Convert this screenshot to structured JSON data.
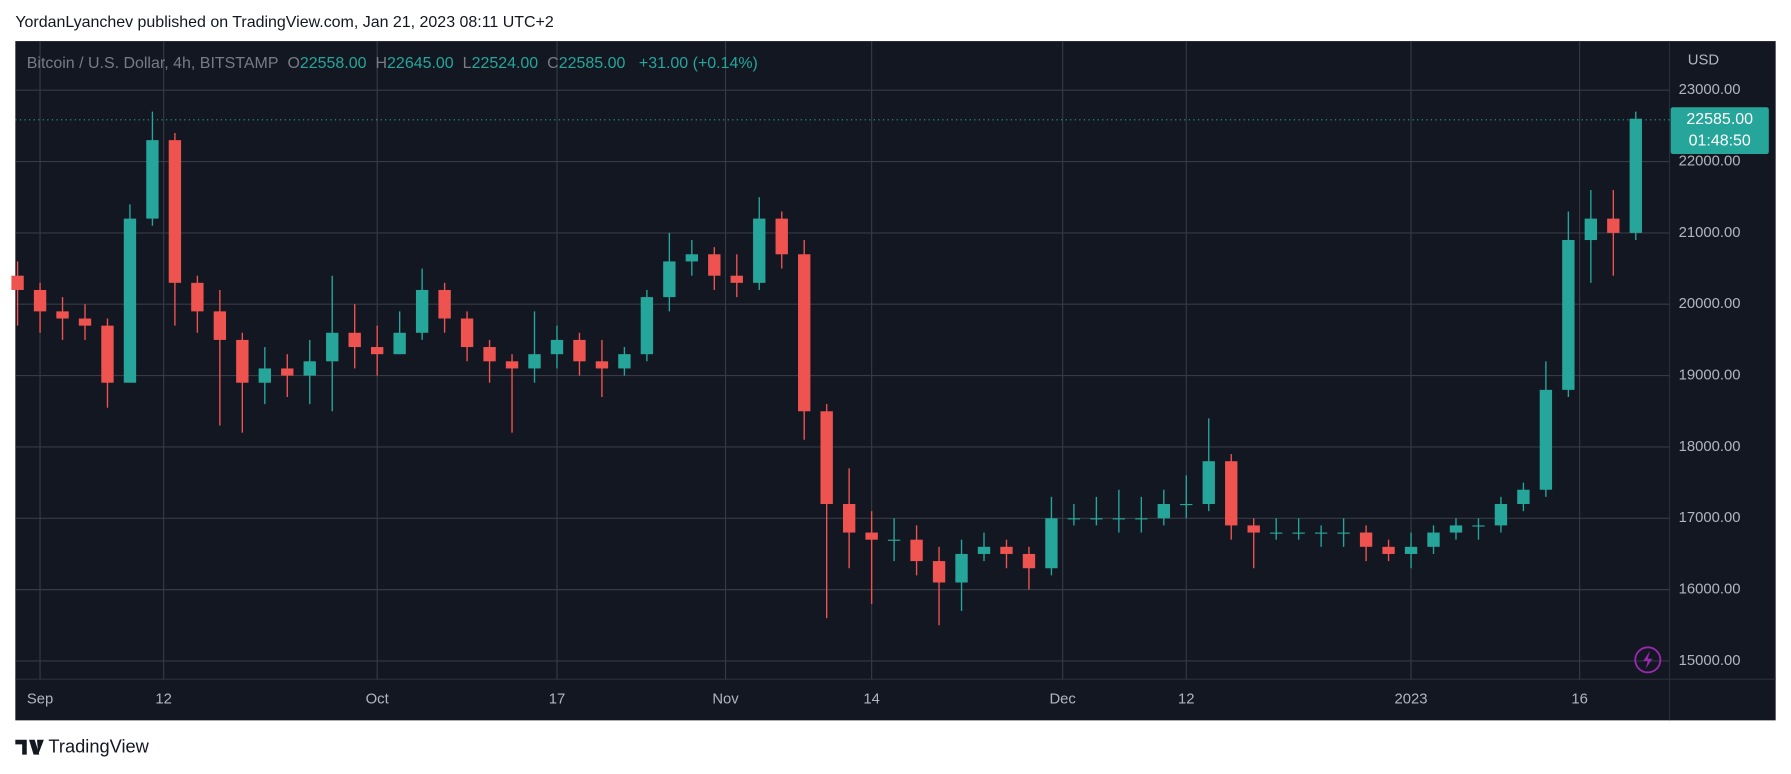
{
  "header": {
    "text": "YordanLyanchev published on TradingView.com, Jan 21, 2023 08:11 UTC+2"
  },
  "chart_data": {
    "type": "candlestick",
    "ohlc_legend": {
      "symbol": "Bitcoin / U.S. Dollar, 4h, BITSTAMP",
      "open_label": "O",
      "open": "22558.00",
      "high_label": "H",
      "high": "22645.00",
      "low_label": "L",
      "low": "22524.00",
      "close_label": "C",
      "close": "22585.00",
      "change": "+31.00 (+0.14%)"
    },
    "currency": "USD",
    "last_price": {
      "value": 22585,
      "label": "22585.00"
    },
    "countdown": "01:48:50",
    "up_color": "#26a69a",
    "down_color": "#ef5350",
    "grid": true,
    "xlim": [
      -0.2,
      147
    ],
    "xticks": [
      {
        "value": 2,
        "label": "Sep"
      },
      {
        "value": 13,
        "label": "12"
      },
      {
        "value": 32,
        "label": "Oct"
      },
      {
        "value": 48,
        "label": "17"
      },
      {
        "value": 63,
        "label": "Nov"
      },
      {
        "value": 76,
        "label": "14"
      },
      {
        "value": 93,
        "label": "Dec"
      },
      {
        "value": 104,
        "label": "12"
      },
      {
        "value": 124,
        "label": "2023"
      },
      {
        "value": 139,
        "label": "16"
      }
    ],
    "ylim": [
      14744,
      23688
    ],
    "yticks": [
      {
        "value": 15000,
        "label": "15000.00"
      },
      {
        "value": 16000,
        "label": "16000.00"
      },
      {
        "value": 17000,
        "label": "17000.00"
      },
      {
        "value": 18000,
        "label": "18000.00"
      },
      {
        "value": 19000,
        "label": "19000.00"
      },
      {
        "value": 20000,
        "label": "20000.00"
      },
      {
        "value": 21000,
        "label": "21000.00"
      },
      {
        "value": 22000,
        "label": "22000.00"
      },
      {
        "value": 23000,
        "label": "23000.00"
      }
    ],
    "x": [
      0,
      2,
      4,
      6,
      8,
      10,
      12,
      14,
      16,
      18,
      20,
      22,
      24,
      26,
      28,
      30,
      32,
      34,
      36,
      38,
      40,
      42,
      44,
      46,
      48,
      50,
      52,
      54,
      56,
      58,
      60,
      62,
      64,
      66,
      68,
      70,
      72,
      74,
      76,
      78,
      80,
      82,
      84,
      86,
      88,
      90,
      92,
      94,
      96,
      98,
      100,
      102,
      104,
      106,
      108,
      110,
      112,
      114,
      116,
      118,
      120,
      122,
      124,
      126,
      128,
      130,
      132,
      134,
      136,
      138,
      140,
      142,
      144
    ],
    "open": [
      20400,
      20200,
      19900,
      19800,
      19700,
      18900,
      21200,
      22300,
      20300,
      19900,
      19500,
      18900,
      19100,
      19000,
      19200,
      19600,
      19400,
      19300,
      19600,
      20200,
      19800,
      19400,
      19200,
      19100,
      19300,
      19500,
      19200,
      19100,
      19300,
      20100,
      20600,
      20700,
      20400,
      20300,
      21200,
      20700,
      18500,
      17200,
      16800,
      16700,
      16700,
      16400,
      16100,
      16500,
      16600,
      16500,
      16300,
      17000,
      17000,
      17000,
      17000,
      17000,
      17200,
      17200,
      17800,
      16900,
      16800,
      16800,
      16800,
      16800,
      16800,
      16600,
      16500,
      16600,
      16800,
      16900,
      16900,
      17200,
      17400,
      18800,
      20900,
      21200,
      21000
    ],
    "high": [
      20600,
      20300,
      20100,
      20000,
      19800,
      21400,
      22700,
      22400,
      20400,
      20200,
      19600,
      19400,
      19300,
      19500,
      20400,
      20000,
      19700,
      19900,
      20500,
      20300,
      19900,
      19500,
      19300,
      19900,
      19700,
      19600,
      19500,
      19400,
      20200,
      21000,
      20900,
      20800,
      20700,
      21500,
      21300,
      20900,
      18600,
      17700,
      17100,
      17000,
      16900,
      16600,
      16700,
      16800,
      16700,
      16600,
      17300,
      17200,
      17300,
      17400,
      17300,
      17400,
      17600,
      18400,
      17900,
      17000,
      17000,
      17000,
      16900,
      17000,
      16900,
      16700,
      16800,
      16900,
      17000,
      17000,
      17300,
      17500,
      19200,
      21300,
      21600,
      21600,
      22700
    ],
    "low": [
      19700,
      19600,
      19500,
      19500,
      18550,
      18900,
      21100,
      19700,
      19600,
      18300,
      18200,
      18600,
      18700,
      18600,
      18500,
      19100,
      19000,
      19300,
      19500,
      19600,
      19200,
      18900,
      18200,
      18900,
      19100,
      19000,
      18700,
      19000,
      19200,
      19900,
      20400,
      20200,
      20100,
      20200,
      20500,
      18100,
      15600,
      16300,
      15800,
      16400,
      16200,
      15500,
      15700,
      16400,
      16300,
      16000,
      16200,
      16900,
      16900,
      16800,
      16800,
      16900,
      17000,
      17100,
      16700,
      16300,
      16700,
      16700,
      16600,
      16600,
      16400,
      16400,
      16300,
      16500,
      16700,
      16700,
      16800,
      17100,
      17300,
      18700,
      20300,
      20400,
      20900
    ],
    "close": [
      20200,
      19900,
      19800,
      19700,
      18900,
      21200,
      22300,
      20300,
      19900,
      19500,
      18900,
      19100,
      19000,
      19200,
      19600,
      19400,
      19300,
      19600,
      20200,
      19800,
      19400,
      19200,
      19100,
      19300,
      19500,
      19200,
      19100,
      19300,
      20100,
      20600,
      20700,
      20400,
      20300,
      21200,
      20700,
      18500,
      17200,
      16800,
      16700,
      16700,
      16400,
      16100,
      16500,
      16600,
      16500,
      16300,
      17000,
      17000,
      17000,
      17000,
      17000,
      17200,
      17200,
      17800,
      16900,
      16800,
      16800,
      16800,
      16800,
      16800,
      16600,
      16500,
      16600,
      16800,
      16900,
      16900,
      17200,
      17400,
      18800,
      20900,
      21200,
      21000,
      22600
    ]
  },
  "footer": {
    "brand": "TradingView"
  }
}
